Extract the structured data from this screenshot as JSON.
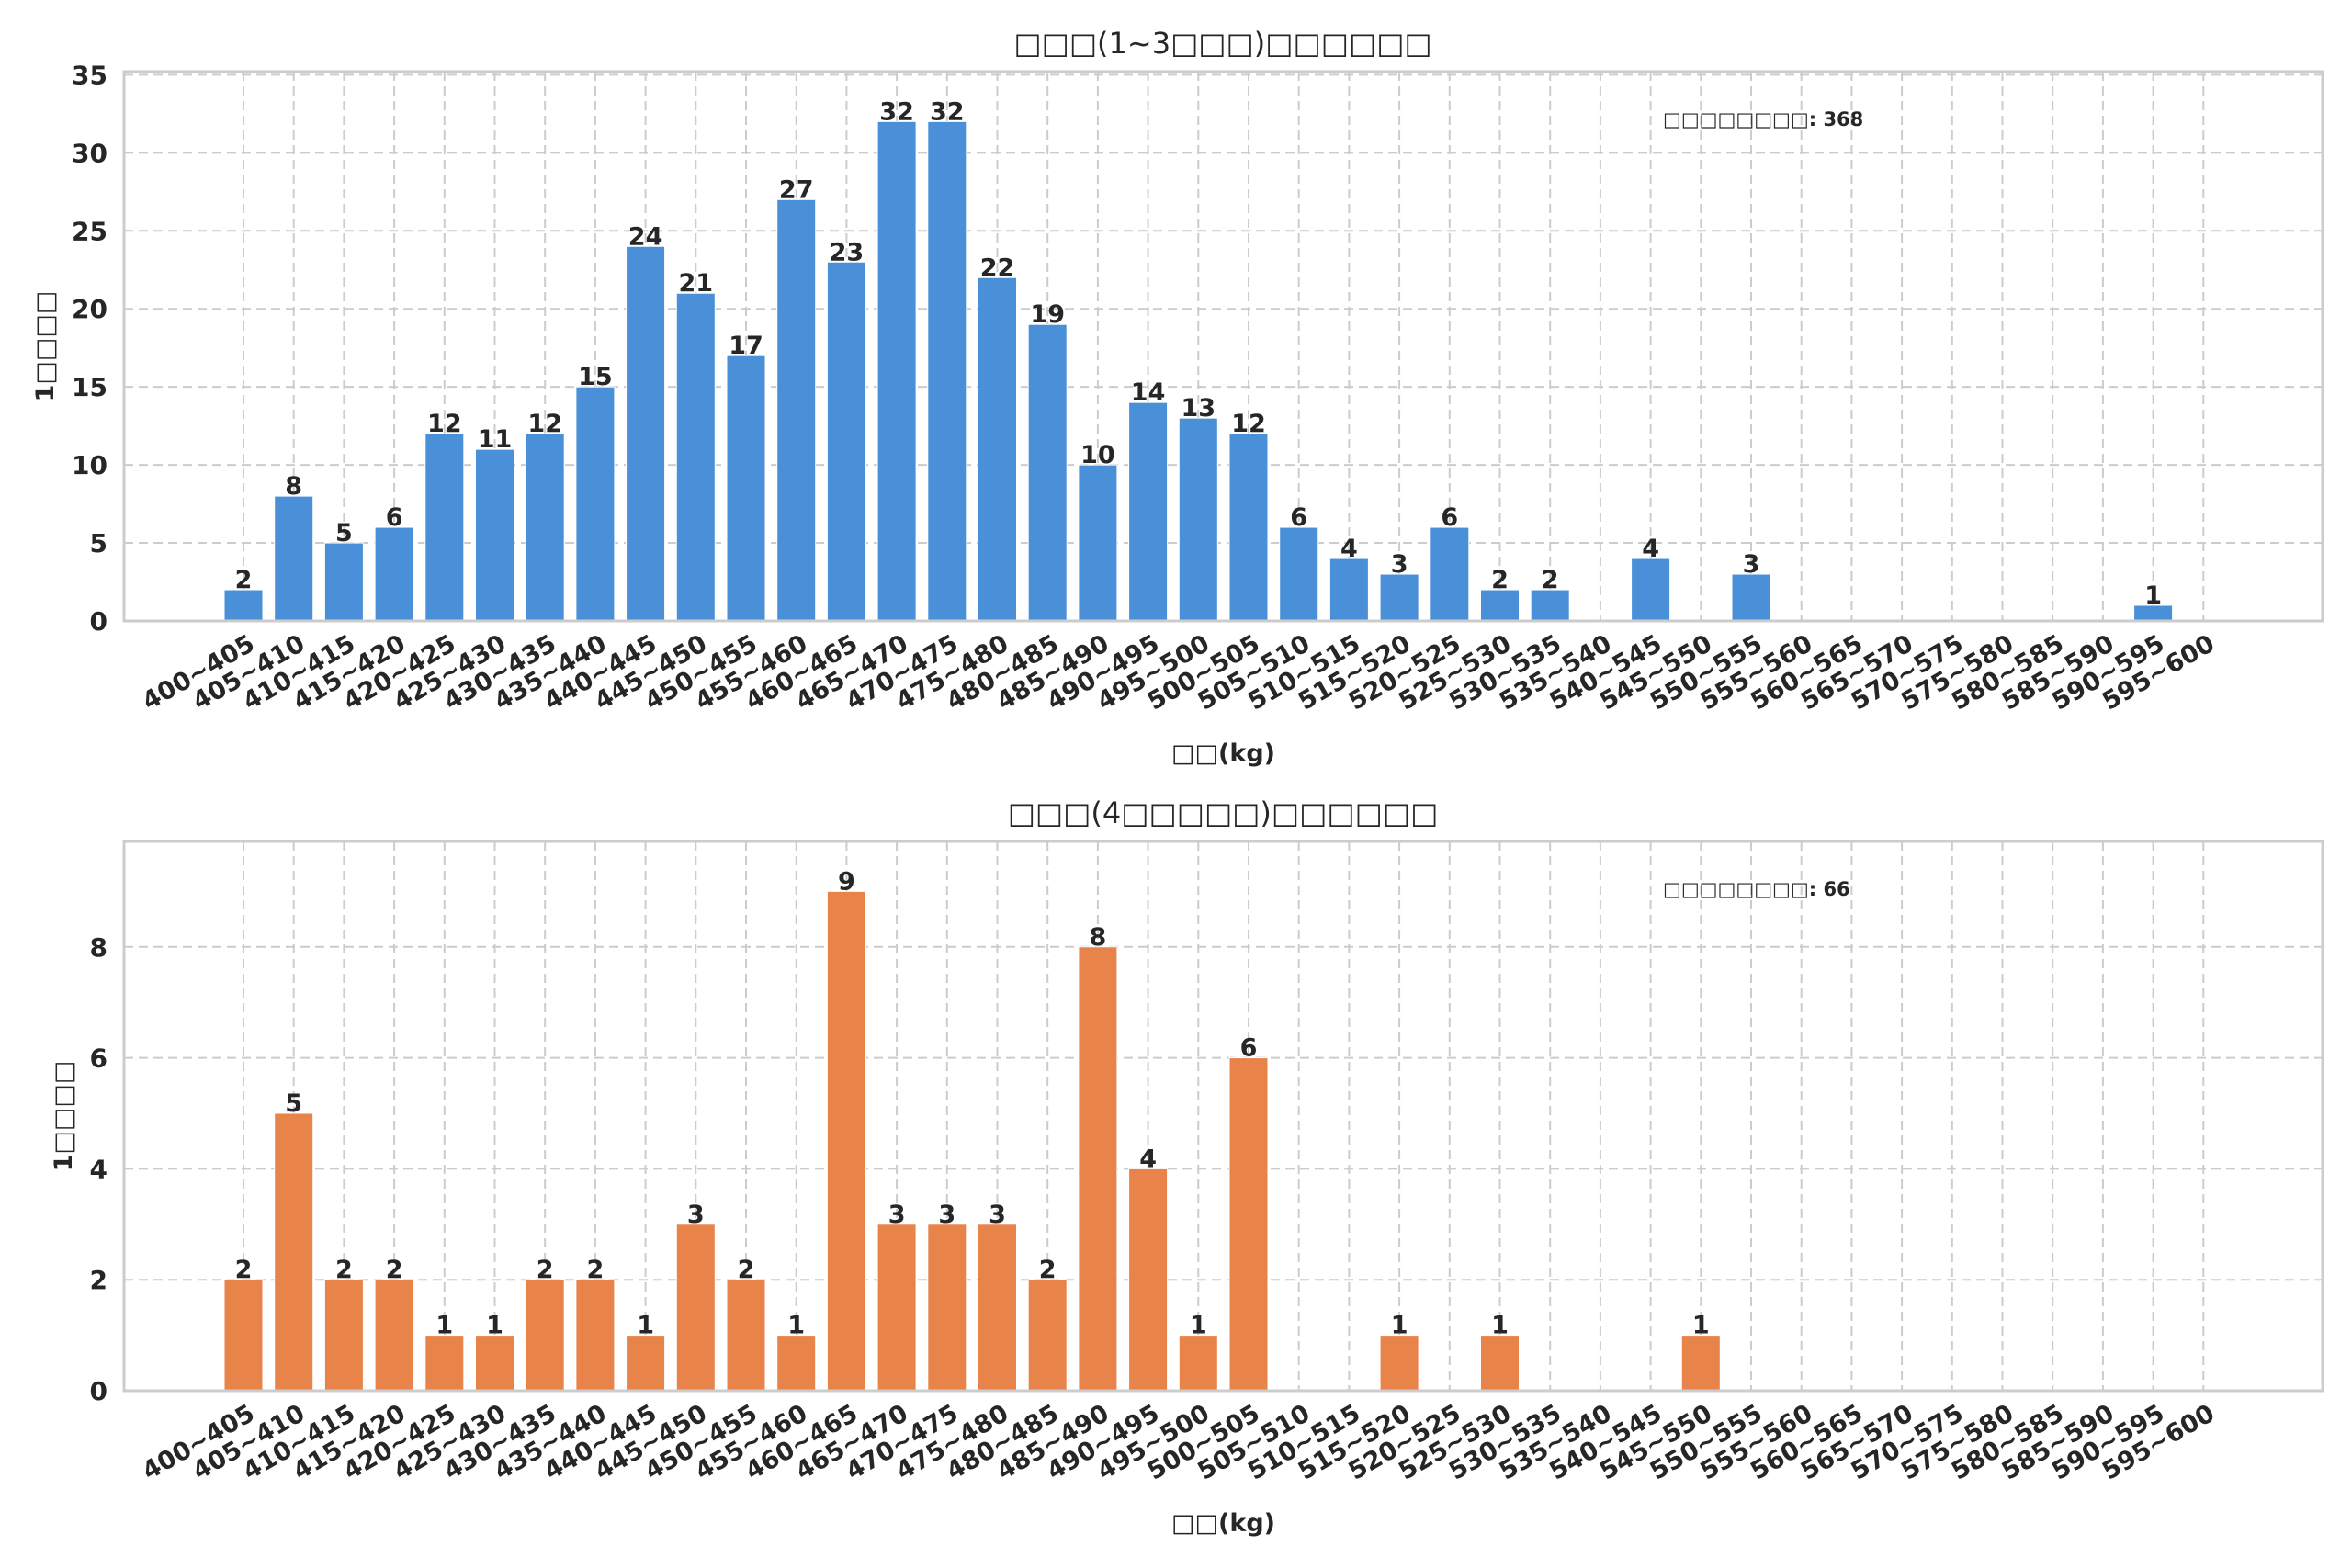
{
  "chart_data": [
    {
      "type": "bar",
      "title": "□□□(1~3□□□)□□□□□□",
      "xlabel": "□□(kg)",
      "ylabel": "1□□□□",
      "ylim": [
        0,
        35.2
      ],
      "yticks": [
        0,
        5,
        10,
        15,
        20,
        25,
        30,
        35
      ],
      "grid": true,
      "color": "#4a90d9",
      "annotation": "□□□□□□□□: 368",
      "categories": [
        "400~405",
        "405~410",
        "410~415",
        "415~420",
        "420~425",
        "425~430",
        "430~435",
        "435~440",
        "440~445",
        "445~450",
        "450~455",
        "455~460",
        "460~465",
        "465~470",
        "470~475",
        "475~480",
        "480~485",
        "485~490",
        "490~495",
        "495~500",
        "500~505",
        "505~510",
        "510~515",
        "515~520",
        "520~525",
        "525~530",
        "530~535",
        "535~540",
        "540~545",
        "545~550",
        "550~555",
        "555~560",
        "560~565",
        "565~570",
        "570~575",
        "575~580",
        "580~585",
        "585~590",
        "590~595",
        "595~600"
      ],
      "values": [
        2,
        8,
        5,
        6,
        12,
        11,
        12,
        15,
        24,
        21,
        17,
        27,
        23,
        32,
        32,
        22,
        19,
        10,
        14,
        13,
        12,
        6,
        4,
        3,
        6,
        2,
        2,
        0,
        4,
        0,
        3,
        0,
        0,
        0,
        0,
        0,
        0,
        0,
        1,
        0
      ]
    },
    {
      "type": "bar",
      "title": "□□□(4□□□□□)□□□□□□",
      "xlabel": "□□(kg)",
      "ylabel": "1□□□□",
      "ylim": [
        0,
        9.9
      ],
      "yticks": [
        0,
        2,
        4,
        6,
        8
      ],
      "grid": true,
      "color": "#e8834a",
      "annotation": "□□□□□□□□: 66",
      "categories": [
        "400~405",
        "405~410",
        "410~415",
        "415~420",
        "420~425",
        "425~430",
        "430~435",
        "435~440",
        "440~445",
        "445~450",
        "450~455",
        "455~460",
        "460~465",
        "465~470",
        "470~475",
        "475~480",
        "480~485",
        "485~490",
        "490~495",
        "495~500",
        "500~505",
        "505~510",
        "510~515",
        "515~520",
        "520~525",
        "525~530",
        "530~535",
        "535~540",
        "540~545",
        "545~550",
        "550~555",
        "555~560",
        "560~565",
        "565~570",
        "570~575",
        "575~580",
        "580~585",
        "585~590",
        "590~595",
        "595~600"
      ],
      "values": [
        2,
        5,
        2,
        2,
        1,
        1,
        2,
        2,
        1,
        3,
        2,
        1,
        9,
        3,
        3,
        3,
        2,
        8,
        4,
        1,
        6,
        0,
        0,
        1,
        0,
        1,
        0,
        0,
        0,
        1,
        0,
        0,
        0,
        0,
        0,
        0,
        0,
        0,
        0,
        0
      ]
    }
  ]
}
